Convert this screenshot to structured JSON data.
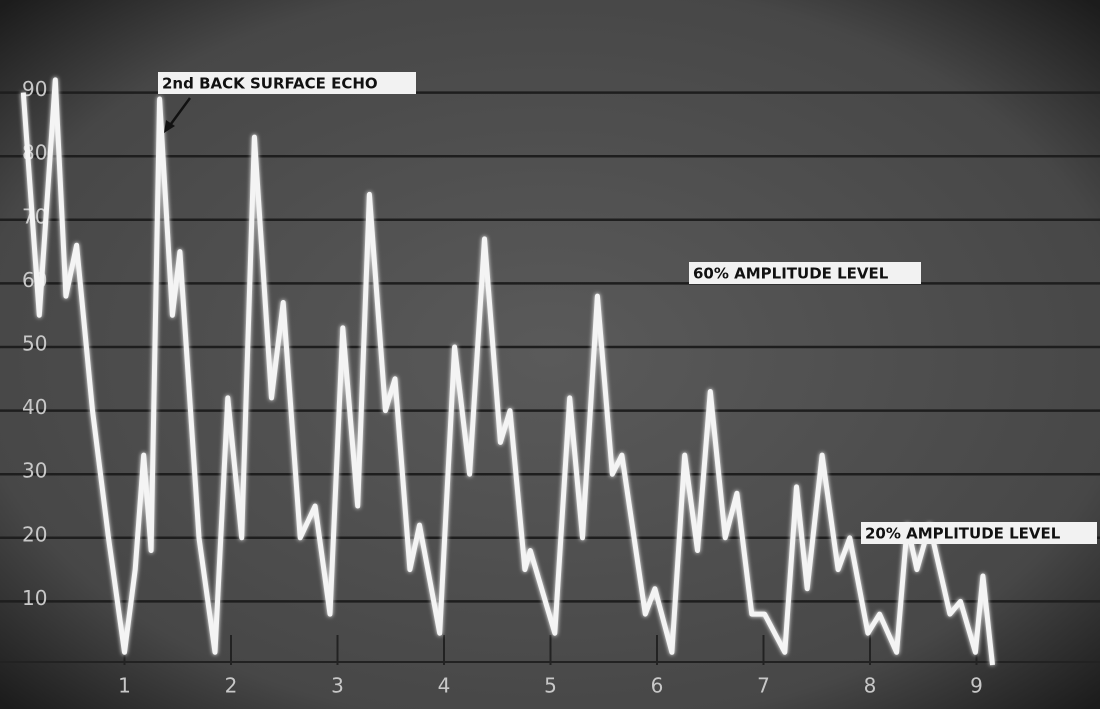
{
  "chart_data": {
    "type": "line",
    "annotations": [
      "2nd BACK SURFACE ECHO",
      "60% AMPLITUDE LEVEL",
      "20% AMPLITUDE LEVEL"
    ],
    "xlim": [
      0,
      10
    ],
    "ylim": [
      0,
      100
    ],
    "xticks": [
      1,
      2,
      3,
      4,
      5,
      6,
      7,
      8,
      9
    ],
    "yticks": [
      10,
      20,
      30,
      40,
      50,
      60,
      70,
      80,
      90
    ],
    "grid": true,
    "color": "#f4f4f4",
    "x": [
      0.05,
      0.2,
      0.35,
      0.45,
      0.55,
      0.7,
      0.85,
      1.0,
      1.1,
      1.18,
      1.25,
      1.33,
      1.45,
      1.52,
      1.6,
      1.7,
      1.85,
      1.97,
      2.1,
      2.22,
      2.38,
      2.49,
      2.65,
      2.79,
      2.93,
      3.05,
      3.19,
      3.3,
      3.45,
      3.54,
      3.68,
      3.77,
      3.96,
      4.1,
      4.24,
      4.38,
      4.53,
      4.62,
      4.76,
      4.81,
      5.04,
      5.18,
      5.3,
      5.44,
      5.58,
      5.67,
      5.89,
      5.98,
      6.14,
      6.26,
      6.38,
      6.5,
      6.64,
      6.75,
      6.89,
      7.01,
      7.2,
      7.31,
      7.41,
      7.55,
      7.7,
      7.81,
      7.98,
      8.09,
      8.25,
      8.35,
      8.44,
      8.56,
      8.75,
      8.85,
      8.99,
      9.06,
      9.15
    ],
    "values": [
      90,
      55,
      92,
      58,
      66,
      40,
      20,
      2,
      15,
      33,
      18,
      89,
      55,
      65,
      45,
      20,
      2,
      42,
      20,
      83,
      42,
      57,
      20,
      25,
      8,
      53,
      25,
      74,
      40,
      45,
      15,
      22,
      5,
      50,
      30,
      67,
      35,
      40,
      15,
      18,
      5,
      42,
      20,
      58,
      30,
      33,
      8,
      12,
      2,
      33,
      18,
      43,
      20,
      27,
      8,
      8,
      2,
      28,
      12,
      33,
      15,
      20,
      5,
      8,
      2,
      22,
      15,
      22,
      8,
      10,
      2,
      14,
      0
    ]
  }
}
